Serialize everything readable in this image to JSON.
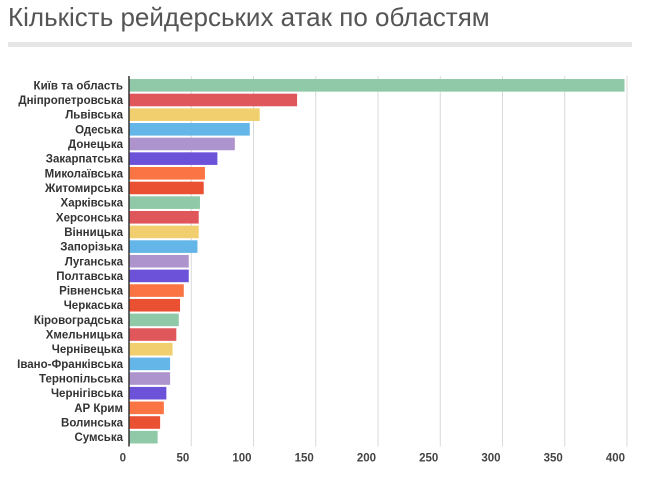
{
  "chart_data": {
    "type": "bar",
    "orientation": "horizontal",
    "title": "Кількість рейдерських атак по областям",
    "xlabel": "",
    "ylabel": "",
    "xlim": [
      0,
      400
    ],
    "x_ticks": [
      "0",
      "50",
      "100",
      "150",
      "200",
      "250",
      "300",
      "350",
      "400"
    ],
    "grid": "vertical",
    "legend": "none",
    "categories": [
      "Київ та область",
      "Дніпропетровська",
      "Львівська",
      "Одеська",
      "Донецька",
      "Закарпатська",
      "Миколаївська",
      "Житомирська",
      "Харківська",
      "Херсонська",
      "Вінницька",
      "Запорізька",
      "Луганська",
      "Полтавська",
      "Рівненська",
      "Черкаська",
      "Кіровоградська",
      "Хмельницька",
      "Чернівецька",
      "Івано-Франківська",
      "Тернопільська",
      "Чернігівська",
      "АР Крим",
      "Волинська",
      "Сумська"
    ],
    "values": [
      398,
      135,
      105,
      97,
      85,
      71,
      61,
      60,
      57,
      56,
      56,
      55,
      48,
      48,
      44,
      41,
      40,
      38,
      35,
      33,
      33,
      30,
      28,
      25,
      23
    ],
    "colors": [
      "#8fc9a7",
      "#e0575b",
      "#f2cf6e",
      "#64b5e8",
      "#ae94cd",
      "#6c52d9",
      "#fb7443",
      "#ea5032",
      "#8fc9a7",
      "#e0575b",
      "#f2cf6e",
      "#64b5e8",
      "#ae94cd",
      "#6c52d9",
      "#fb7443",
      "#ea5032",
      "#8fc9a7",
      "#e0575b",
      "#f2cf6e",
      "#64b5e8",
      "#ae94cd",
      "#6c52d9",
      "#fb7443",
      "#ea5032",
      "#8fc9a7"
    ]
  }
}
